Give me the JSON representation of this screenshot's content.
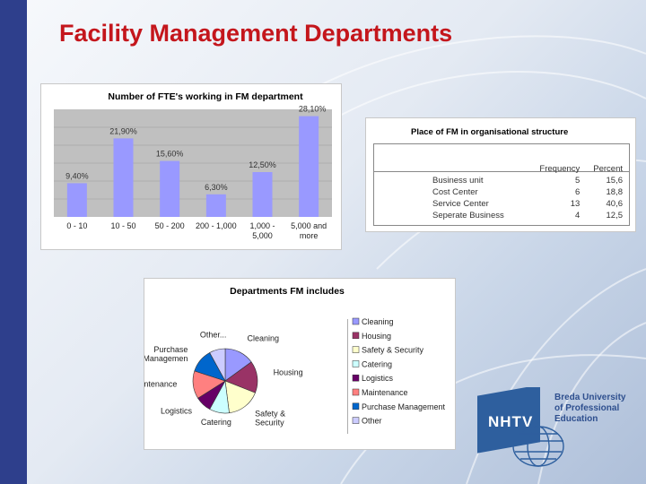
{
  "slide": {
    "title": "Facility Management Departments"
  },
  "chart_data": [
    {
      "type": "bar",
      "title": "Number of FTE's working in FM department",
      "categories": [
        "0 - 10",
        "10 - 50",
        "50 - 200",
        "200 - 1,000",
        "1,000 - 5,000",
        "5,000 and more"
      ],
      "category_lines": [
        [
          "0 - 10"
        ],
        [
          "10 - 50"
        ],
        [
          "50 - 200"
        ],
        [
          "200 - 1,000"
        ],
        [
          "1,000 -",
          "5,000"
        ],
        [
          "5,000 and",
          "more"
        ]
      ],
      "values": [
        9.4,
        21.9,
        15.6,
        6.3,
        12.5,
        28.1
      ],
      "data_labels": [
        "9,40%",
        "21,90%",
        "15,60%",
        "6,30%",
        "12,50%",
        "28,10%"
      ],
      "ylim": [
        0,
        30
      ],
      "grid": true,
      "bar_color": "#9999ff",
      "plot_background": "#c0c0c0"
    },
    {
      "type": "table",
      "title": "Place of FM in organisational structure",
      "columns": [
        "",
        "Frequency",
        "Percent"
      ],
      "rows": [
        [
          "Business unit",
          "5",
          "15,6"
        ],
        [
          "Cost Center",
          "6",
          "18,8"
        ],
        [
          "Service Center",
          "13",
          "40,6"
        ],
        [
          "Seperate Business",
          "4",
          "12,5"
        ]
      ]
    },
    {
      "type": "pie",
      "title": "Departments FM includes",
      "categories": [
        "Cleaning",
        "Housing",
        "Safety & Security",
        "Catering",
        "Logistics",
        "Maintenance",
        "Purchase Management",
        "Other"
      ],
      "slice_labels": [
        "Cleaning",
        "Housing",
        "Safety &\nSecurity",
        "Catering",
        "Logistics",
        "Maintenance",
        "Purchase\nManagemen",
        "Other..."
      ],
      "values": [
        15,
        16,
        17,
        10,
        8,
        14,
        12,
        8
      ],
      "colors": [
        "#9999ff",
        "#993366",
        "#ffffcc",
        "#ccffff",
        "#660066",
        "#ff8080",
        "#0066cc",
        "#ccccff"
      ],
      "legend": "right"
    }
  ],
  "logo": {
    "mark": "NHTV",
    "lines": [
      "Breda University",
      "of Professional",
      "Education"
    ]
  }
}
